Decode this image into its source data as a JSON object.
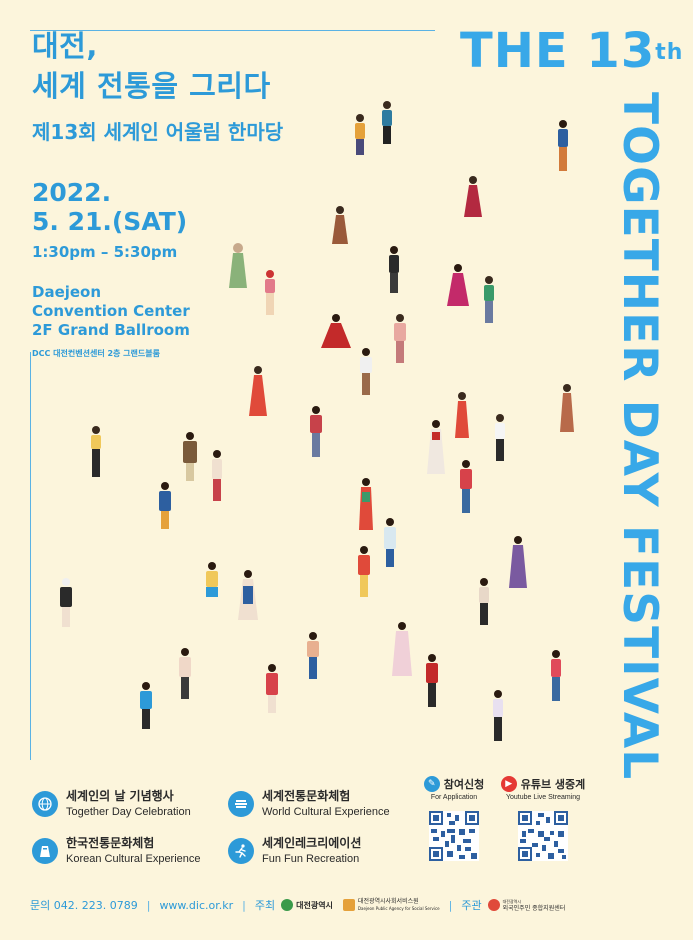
{
  "header": {
    "title_line1": "대전,",
    "title_line2": "세계 전통을 그리다",
    "subtitle": "제13회 세계인 어울림 한마당"
  },
  "event": {
    "year": "2022.",
    "date": "5. 21.(SAT)",
    "time": "1:30pm – 5:30pm",
    "venue_line1": "Daejeon",
    "venue_line2": "Convention Center",
    "venue_line3": "2F Grand Ballroom",
    "venue_ko": "DCC 대전컨벤션센터 2층 그랜드볼룸"
  },
  "festival": {
    "top": "THE 13",
    "top_sup": "th",
    "vertical": "TOGETHER DAY FESTIVAL"
  },
  "activities": [
    {
      "ko": "세계인의 날 기념행사",
      "en": "Together Day Celebration",
      "icon": "globe-icon"
    },
    {
      "ko": "세계전통문화체험",
      "en": "World Cultural Experience",
      "icon": "books-icon"
    },
    {
      "ko": "한국전통문화체험",
      "en": "Korean Cultural Experience",
      "icon": "hanbok-icon"
    },
    {
      "ko": "세계인레크리에이션",
      "en": "Fun Fun Recreation",
      "icon": "running-icon"
    }
  ],
  "registration": [
    {
      "ko": "참여신청",
      "en": "For Application",
      "icon": "application-icon"
    },
    {
      "ko": "유튜브 생중계",
      "en": "Youtube Live Streaming",
      "icon": "youtube-icon"
    }
  ],
  "footer": {
    "contact": "문의 042. 223. 0789",
    "website": "www.dic.or.kr",
    "host_label": "주최",
    "host1": "대전광역시",
    "host2_line1": "대전광역시사회서비스원",
    "host2_line2": "Daejeon Public Agency for Social Service",
    "organizer_label": "주관",
    "organizer_line1": "대전광역시",
    "organizer_line2": "외국인주민 종합지원센터"
  },
  "colors": {
    "accent": "#2d9ad8",
    "festival": "#38a8e8",
    "background": "#fcf5dc",
    "youtube": "#e53935"
  }
}
